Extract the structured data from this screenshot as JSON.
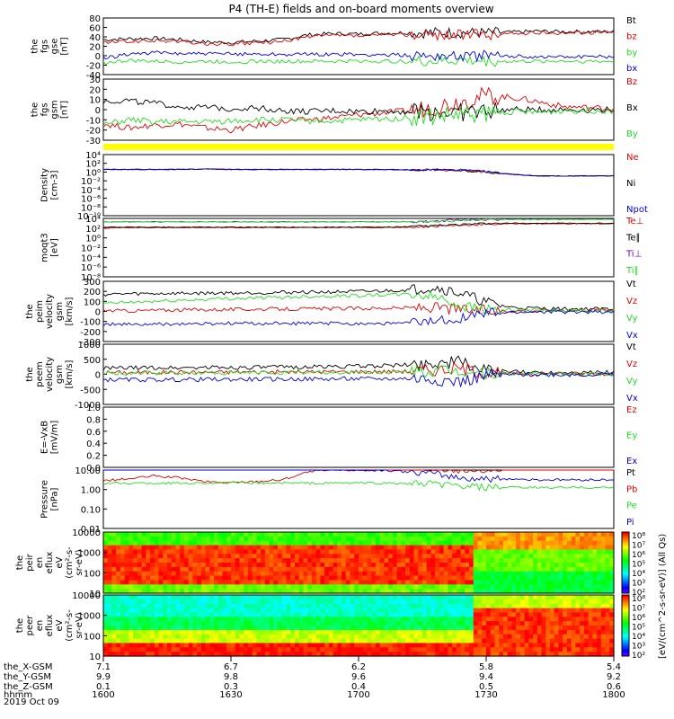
{
  "title": "P4 (TH-E) fields and on-board moments overview",
  "time_axis": {
    "rows": [
      {
        "label": "the_X-GSM",
        "values": [
          "7.1",
          "6.7",
          "6.2",
          "5.8",
          "5.4"
        ]
      },
      {
        "label": "the_Y-GSM",
        "values": [
          "9.9",
          "9.8",
          "9.6",
          "9.4",
          "9.2"
        ]
      },
      {
        "label": "the_Z-GSM",
        "values": [
          "0.1",
          "0.3",
          "0.4",
          "0.5",
          "0.6"
        ]
      },
      {
        "label": "hhmm",
        "values": [
          "1600",
          "1630",
          "1700",
          "1730",
          "1800"
        ]
      }
    ],
    "date": "2019 Oct 09"
  },
  "colors": {
    "black": "#000000",
    "red": "#e00000",
    "green": "#22dd22",
    "blue": "#0000dd",
    "yellow": "#ffff00",
    "purple": "#7700aa"
  },
  "chart_data": [
    {
      "id": "fgs-gse",
      "type": "line",
      "ylabel": [
        "the",
        "fgs",
        "gse",
        "[nT]"
      ],
      "yticks": [
        "80",
        "60",
        "40",
        "20",
        "0",
        "-20",
        "-40"
      ],
      "ylim": [
        -40,
        80
      ],
      "series": [
        {
          "name": "Bt",
          "color": "black",
          "values": [
            34,
            36,
            37,
            34,
            29,
            28,
            31,
            34,
            44,
            47,
            46,
            48,
            49,
            49,
            49,
            48,
            50,
            52,
            51,
            51,
            51
          ]
        },
        {
          "name": "bz",
          "color": "red",
          "values": [
            28,
            30,
            32,
            30,
            25,
            24,
            27,
            30,
            40,
            43,
            42,
            44,
            45,
            45,
            45,
            44,
            47,
            48,
            49,
            49,
            50
          ]
        },
        {
          "name": "by",
          "color": "green",
          "values": [
            -15,
            -10,
            -12,
            -13,
            -12,
            -13,
            -12,
            -12,
            -12,
            -12,
            -11,
            -12,
            -12,
            -12,
            -10,
            -12,
            -12,
            -12,
            -11,
            -12,
            -12
          ]
        },
        {
          "name": "bx",
          "color": "blue",
          "values": [
            -6,
            4,
            6,
            5,
            4,
            4,
            4,
            3,
            3,
            3,
            2,
            2,
            1,
            1,
            0,
            -1,
            -1,
            -2,
            -2,
            -2,
            -2
          ]
        }
      ]
    },
    {
      "id": "fgs-gsm",
      "type": "line",
      "ylabel": [
        "the",
        "fgs",
        "gsm",
        "[nT]"
      ],
      "yticks": [
        "30",
        "20",
        "10",
        "0",
        "-10",
        "-20",
        "-30"
      ],
      "ylim": [
        -30,
        30
      ],
      "series": [
        {
          "name": "Bz",
          "color": "red",
          "values": [
            -14,
            -18,
            -15,
            -14,
            -18,
            -20,
            -16,
            -12,
            -10,
            -8,
            -5,
            -3,
            -1,
            3,
            8,
            14,
            12,
            8,
            3,
            2,
            1
          ]
        },
        {
          "name": "Bx",
          "color": "black",
          "values": [
            8,
            9,
            6,
            3,
            2,
            1,
            2,
            -1,
            -2,
            -1,
            -2,
            -1,
            -2,
            -2,
            -3,
            -1,
            0,
            0,
            0,
            0,
            0
          ]
        },
        {
          "name": "By",
          "color": "green",
          "values": [
            -15,
            -10,
            -12,
            -12,
            -12,
            -11,
            -10,
            -10,
            -11,
            -11,
            -10,
            -9,
            -8,
            -7,
            -5,
            -4,
            -2,
            -3,
            -1,
            -1,
            -1
          ]
        }
      ]
    },
    {
      "id": "density",
      "type": "line",
      "log": true,
      "ylabel": [
        "Density",
        "[cm-3]"
      ],
      "yticks": [
        "10⁴",
        "10²",
        "10⁰",
        "10⁻²",
        "10⁻⁴",
        "10⁻⁶",
        "10⁻⁸",
        "10⁻¹⁰"
      ],
      "ylim": [
        -10,
        4
      ],
      "series": [
        {
          "name": "Ne",
          "color": "red",
          "values": [
            0.6,
            0.6,
            0.6,
            0.6,
            0.7,
            0.6,
            0.6,
            0.6,
            0.6,
            0.6,
            0.6,
            0.6,
            0.5,
            0.5,
            0.4,
            0.0,
            -0.5,
            -0.9,
            -0.9,
            -0.9,
            -0.9
          ]
        },
        {
          "name": "Ni",
          "color": "black",
          "values": [
            0.6,
            0.6,
            0.6,
            0.6,
            0.7,
            0.6,
            0.6,
            0.6,
            0.6,
            0.6,
            0.6,
            0.6,
            0.5,
            0.5,
            0.4,
            0.0,
            -0.5,
            -0.9,
            -0.9,
            -0.9,
            -0.9
          ]
        },
        {
          "name": "Npot",
          "color": "blue",
          "values": [
            0.6,
            0.6,
            0.6,
            0.6,
            0.7,
            0.6,
            0.6,
            0.6,
            0.6,
            0.6,
            0.6,
            0.6,
            0.5,
            0.5,
            0.5,
            0.1,
            -0.5,
            -0.9,
            -0.9,
            -0.9,
            -0.9
          ]
        }
      ]
    },
    {
      "id": "moqt3",
      "type": "line",
      "log": true,
      "ylabel": [
        "moqt3",
        "[eV]"
      ],
      "yticks": [
        "10⁴",
        "10²",
        "10⁰",
        "10⁻²",
        "10⁻⁴",
        "10⁻⁶",
        "10⁻⁸"
      ],
      "ylim": [
        -8,
        4
      ],
      "series": [
        {
          "name": "Te⊥",
          "color": "red",
          "values": [
            2.0,
            2.1,
            2.1,
            2.1,
            2.1,
            2.1,
            2.1,
            2.1,
            2.1,
            2.1,
            2.1,
            2.1,
            2.2,
            2.4,
            2.6,
            2.8,
            2.9,
            2.9,
            2.9,
            2.9,
            2.9
          ]
        },
        {
          "name": "Te∥",
          "color": "black",
          "values": [
            2.2,
            2.2,
            2.2,
            2.2,
            2.2,
            2.2,
            2.2,
            2.2,
            2.2,
            2.2,
            2.2,
            2.2,
            2.3,
            2.5,
            2.7,
            2.9,
            3.0,
            3.0,
            3.0,
            3.0,
            3.0
          ]
        },
        {
          "name": "Ti⊥",
          "color": "purple",
          "values": [
            3.3,
            3.3,
            3.3,
            3.3,
            3.3,
            3.3,
            3.3,
            3.3,
            3.3,
            3.3,
            3.3,
            3.3,
            3.3,
            3.4,
            3.7,
            3.8,
            3.8,
            3.8,
            3.8,
            3.8,
            3.8
          ]
        },
        {
          "name": "Ti∥",
          "color": "green",
          "values": [
            3.3,
            3.3,
            3.3,
            3.3,
            3.3,
            3.3,
            3.3,
            3.3,
            3.3,
            3.3,
            3.3,
            3.3,
            3.3,
            3.4,
            3.6,
            3.8,
            3.8,
            3.8,
            3.8,
            3.8,
            3.8
          ]
        }
      ]
    },
    {
      "id": "peim-velocity",
      "type": "line",
      "ylabel": [
        "the",
        "peim",
        "velocity",
        "gsm",
        "[km/s]"
      ],
      "yticks": [
        "300",
        "200",
        "100",
        "0",
        "-100",
        "-200",
        "-300"
      ],
      "ylim": [
        -300,
        300
      ],
      "series": [
        {
          "name": "Vt",
          "color": "black",
          "values": [
            170,
            175,
            178,
            180,
            182,
            184,
            186,
            190,
            192,
            195,
            198,
            205,
            215,
            240,
            180,
            90,
            40,
            30,
            25,
            25,
            25
          ]
        },
        {
          "name": "Vz",
          "color": "red",
          "values": [
            10,
            5,
            12,
            15,
            18,
            20,
            22,
            24,
            25,
            28,
            30,
            32,
            35,
            40,
            20,
            10,
            5,
            10,
            12,
            15,
            15
          ]
        },
        {
          "name": "Vy",
          "color": "green",
          "values": [
            80,
            90,
            100,
            110,
            120,
            130,
            135,
            140,
            150,
            155,
            160,
            165,
            170,
            150,
            60,
            20,
            10,
            8,
            8,
            8,
            8
          ]
        },
        {
          "name": "Vx",
          "color": "blue",
          "values": [
            -130,
            -130,
            -130,
            -125,
            -125,
            -120,
            -120,
            -120,
            -120,
            -120,
            -120,
            -120,
            -115,
            -100,
            -60,
            -20,
            -10,
            -5,
            -5,
            -5,
            -5
          ]
        }
      ]
    },
    {
      "id": "peem-velocity",
      "type": "line",
      "ylabel": [
        "the",
        "peem",
        "velocity",
        "gsm",
        "[km/s]"
      ],
      "yticks": [
        "1000",
        "500",
        "0",
        "-500",
        "-1000"
      ],
      "ylim": [
        -1000,
        1000
      ],
      "series": [
        {
          "name": "Vt",
          "color": "black",
          "values": [
            200,
            210,
            220,
            220,
            230,
            230,
            230,
            240,
            250,
            260,
            270,
            290,
            310,
            380,
            420,
            120,
            80,
            70,
            70,
            70,
            70
          ]
        },
        {
          "name": "Vz",
          "color": "red",
          "values": [
            60,
            60,
            65,
            70,
            70,
            75,
            80,
            80,
            80,
            85,
            90,
            90,
            100,
            150,
            200,
            40,
            20,
            20,
            20,
            20,
            20
          ]
        },
        {
          "name": "Vy",
          "color": "green",
          "values": [
            30,
            30,
            40,
            40,
            50,
            50,
            50,
            60,
            60,
            60,
            70,
            70,
            80,
            90,
            100,
            30,
            10,
            10,
            10,
            10,
            10
          ]
        },
        {
          "name": "Vx",
          "color": "blue",
          "values": [
            -180,
            -180,
            -180,
            -175,
            -170,
            -170,
            -165,
            -160,
            -160,
            -155,
            -150,
            -150,
            -140,
            -160,
            -250,
            -40,
            -10,
            -10,
            -10,
            -10,
            -10
          ]
        }
      ]
    },
    {
      "id": "efield",
      "type": "line",
      "ylabel": [
        "E=-VxB",
        "[mV/m]"
      ],
      "yticks": [
        "1.0",
        "0.8",
        "0.6",
        "0.4",
        "0.2",
        "0.0"
      ],
      "ylim": [
        0,
        1
      ],
      "series": [
        {
          "name": "Ez",
          "color": "red",
          "values": []
        },
        {
          "name": "Ey",
          "color": "green",
          "values": []
        },
        {
          "name": "Ex",
          "color": "blue",
          "values": []
        }
      ]
    },
    {
      "id": "pressure",
      "type": "line",
      "log": true,
      "ylabel": [
        "Pressure",
        "[nPa]"
      ],
      "yticks": [
        "10.00",
        "1.00",
        "0.10",
        "0.01"
      ],
      "ylim": [
        -2,
        1
      ],
      "series": [
        {
          "name": "Pt",
          "color": "black",
          "values": [
            2.0,
            2.1,
            2.1,
            2.0,
            2.3,
            2.2,
            2.1,
            2.0,
            2.1,
            2.0,
            2.0,
            2.1,
            2.0,
            2.0,
            1.8,
            1.7,
            1.7,
            1.7,
            1.7,
            1.7,
            1.7
          ]
        },
        {
          "name": "Pb",
          "color": "red",
          "values": [
            0.45,
            0.55,
            0.7,
            0.6,
            0.4,
            0.35,
            0.42,
            0.5,
            0.9,
            1.0,
            1.0,
            1.0,
            1.1,
            1.1,
            1.0,
            1.0,
            1.05,
            1.1,
            1.1,
            1.1,
            1.15
          ]
        },
        {
          "name": "Pe",
          "color": "green",
          "values": [
            0.32,
            0.33,
            0.33,
            0.33,
            0.34,
            0.34,
            0.33,
            0.33,
            0.33,
            0.33,
            0.34,
            0.33,
            0.3,
            0.28,
            0.16,
            0.1,
            0.1,
            0.1,
            0.1,
            0.1,
            0.1
          ]
        },
        {
          "name": "Pi",
          "color": "blue",
          "values": [
            1.5,
            1.5,
            1.6,
            1.5,
            1.8,
            1.7,
            1.6,
            1.5,
            1.2,
            1.1,
            1.0,
            1.0,
            0.9,
            0.8,
            0.6,
            0.55,
            0.55,
            0.5,
            0.5,
            0.5,
            0.5
          ]
        }
      ]
    },
    {
      "id": "peir-spectrogram",
      "type": "heatmap",
      "ylabel": [
        "the",
        "peir",
        "en",
        "eflux",
        "eV",
        "(cm²-s-",
        "sr-eV)"
      ],
      "yticks": [
        "10000",
        "1000",
        "100",
        "10"
      ],
      "ylim": [
        10,
        10000
      ]
    },
    {
      "id": "peer-spectrogram",
      "type": "heatmap",
      "ylabel": [
        "the",
        "peer",
        "en",
        "eflux",
        "eV",
        "(cm²-s-",
        "sr-eV)"
      ],
      "yticks": [
        "10000",
        "1000",
        "100",
        "10"
      ],
      "ylim": [
        10,
        10000
      ]
    }
  ],
  "colorbar": {
    "label": "[eV/(cm^2-s-sr-eV)] (All Qs)",
    "ticks": [
      "10⁸",
      "10⁷",
      "10⁶",
      "10⁵",
      "10⁴",
      "10³",
      "10²"
    ]
  },
  "status_bar_color": "yellow"
}
